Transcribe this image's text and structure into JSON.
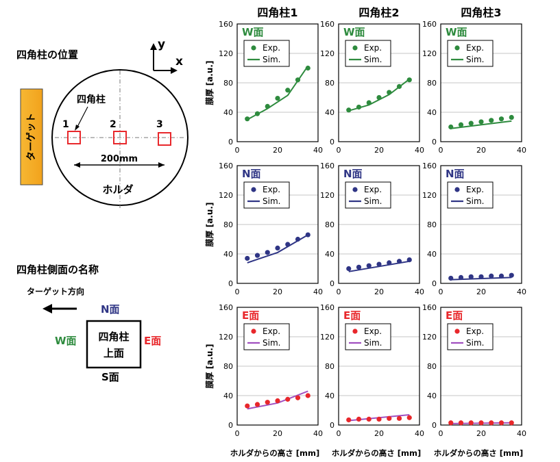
{
  "left": {
    "position_title": "四角柱の位置",
    "axis_y": "y",
    "axis_x": "x",
    "target_label": "ターゲット",
    "pillar_label": "四角柱",
    "num1": "1",
    "num2": "2",
    "num3": "3",
    "dist_label": "200mm",
    "holder_label": "ホルダ",
    "sides_title": "四角柱側面の名称",
    "target_dir_label": "ターゲット方向",
    "face_n": "N面",
    "face_w": "W面",
    "face_e": "E面",
    "face_s": "S面",
    "top_face_line1": "四角柱",
    "top_face_line2": "上面"
  },
  "chart_data": {
    "type": "scatter",
    "columns": [
      "四角柱1",
      "四角柱2",
      "四角柱3"
    ],
    "row_faces": [
      "W面",
      "N面",
      "E面"
    ],
    "face_colors": {
      "W面": "#2e8b3e",
      "N面": "#2f3585",
      "E面": "#e8272b"
    },
    "sim_colors": {
      "W面": "#2e8b3e",
      "N面": "#2f3585",
      "E面": "#a04fc0"
    },
    "legend": [
      "Exp.",
      "Sim."
    ],
    "xlim": [
      0,
      40
    ],
    "xticks": [
      0,
      20,
      40
    ],
    "ylim": [
      0,
      160
    ],
    "yticks": [
      0,
      40,
      80,
      120,
      160
    ],
    "ylabel": "膜厚",
    "yunit": "[a.u.]",
    "xlabel": "ホルダからの高さ",
    "xunit": "[mm]",
    "x": [
      5,
      10,
      15,
      20,
      25,
      30,
      35
    ],
    "panels": [
      {
        "col": 0,
        "face": "W面",
        "exp": [
          31,
          38,
          48,
          59,
          70,
          84,
          100
        ],
        "sim": [
          [
            5,
            30
          ],
          [
            15,
            45
          ],
          [
            25,
            63
          ],
          [
            35,
            103
          ]
        ]
      },
      {
        "col": 1,
        "face": "W面",
        "exp": [
          43,
          47,
          53,
          60,
          67,
          75,
          84
        ],
        "sim": [
          [
            5,
            42
          ],
          [
            15,
            50
          ],
          [
            25,
            64
          ],
          [
            35,
            85
          ]
        ]
      },
      {
        "col": 2,
        "face": "W面",
        "exp": [
          20,
          23,
          25,
          27,
          29,
          31,
          33
        ],
        "sim": [
          [
            5,
            18
          ],
          [
            35,
            28
          ]
        ]
      },
      {
        "col": 0,
        "face": "N面",
        "exp": [
          34,
          38,
          42,
          48,
          53,
          60,
          66
        ],
        "sim": [
          [
            5,
            28
          ],
          [
            20,
            42
          ],
          [
            35,
            66
          ]
        ]
      },
      {
        "col": 1,
        "face": "N面",
        "exp": [
          20,
          22,
          24,
          26,
          28,
          30,
          32
        ],
        "sim": [
          [
            5,
            16
          ],
          [
            35,
            30
          ]
        ]
      },
      {
        "col": 2,
        "face": "N面",
        "exp": [
          7,
          8,
          9,
          9,
          10,
          10,
          11
        ],
        "sim": [
          [
            5,
            5
          ],
          [
            35,
            8
          ]
        ]
      },
      {
        "col": 0,
        "face": "E面",
        "exp": [
          26,
          28,
          31,
          33,
          35,
          37,
          40
        ],
        "sim": [
          [
            5,
            22
          ],
          [
            20,
            30
          ],
          [
            35,
            46
          ]
        ]
      },
      {
        "col": 1,
        "face": "E面",
        "exp": [
          7,
          8,
          8,
          8,
          9,
          9,
          10
        ],
        "sim": [
          [
            5,
            6
          ],
          [
            35,
            14
          ]
        ]
      },
      {
        "col": 2,
        "face": "E面",
        "exp": [
          3,
          3,
          3,
          3,
          3,
          3,
          3
        ],
        "sim": [
          [
            5,
            2
          ],
          [
            35,
            3
          ]
        ]
      }
    ]
  }
}
